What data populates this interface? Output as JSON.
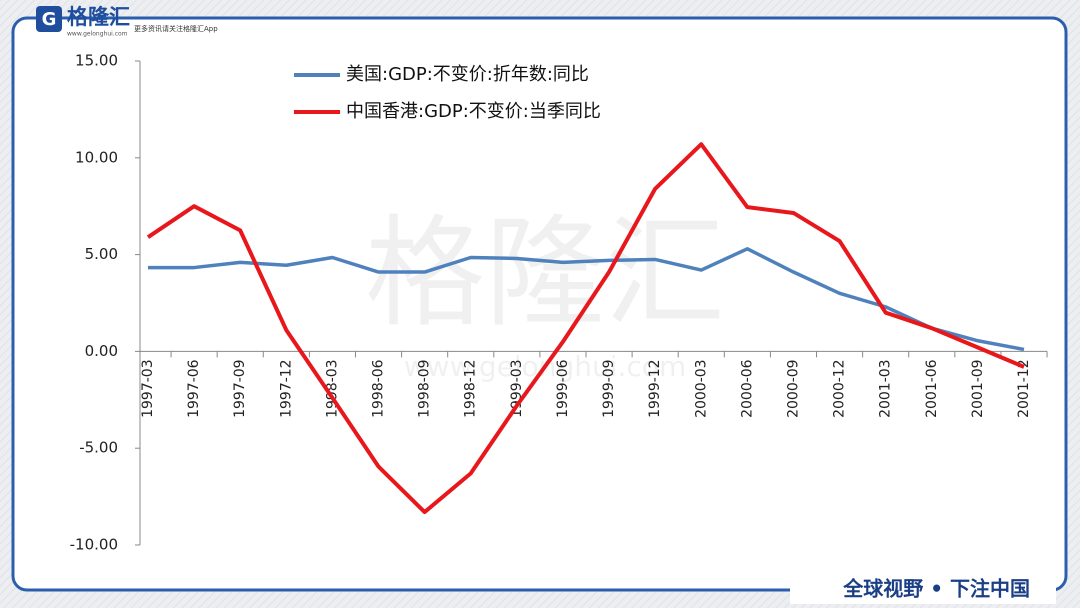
{
  "header": {
    "logo": "格隆汇",
    "slogan": "更多资讯请关注格隆汇App",
    "site": "www.gelonghui.com"
  },
  "watermark": {
    "logo": "格隆汇",
    "site": "www.gelonghui.com"
  },
  "footer": {
    "tagline": "全球视野 • 下注中国"
  },
  "chart_data": {
    "type": "line",
    "categories": [
      "1997-03",
      "1997-06",
      "1997-09",
      "1997-12",
      "1998-03",
      "1998-06",
      "1998-09",
      "1998-12",
      "1999-03",
      "1999-06",
      "1999-09",
      "1999-12",
      "2000-03",
      "2000-06",
      "2000-09",
      "2000-12",
      "2001-03",
      "2001-06",
      "2001-09",
      "2001-12"
    ],
    "series": [
      {
        "name": "美国:GDP:不变价:折年数:同比",
        "color": "#4f81bd",
        "values": [
          4.33,
          4.33,
          4.6,
          4.45,
          4.85,
          4.1,
          4.1,
          4.85,
          4.8,
          4.6,
          4.7,
          4.75,
          4.2,
          5.3,
          4.1,
          3.0,
          2.3,
          1.2,
          0.55,
          0.1
        ]
      },
      {
        "name": "中国香港:GDP:不变价:当季同比",
        "color": "#e8171b",
        "values": [
          5.9,
          7.5,
          6.25,
          1.1,
          -2.4,
          -5.95,
          -8.3,
          -6.3,
          -2.8,
          0.5,
          4.1,
          8.4,
          10.7,
          7.45,
          7.15,
          5.7,
          2.0,
          1.2,
          0.2,
          -0.8
        ]
      }
    ],
    "ylim": [
      -10,
      15
    ],
    "yticks": [
      {
        "value": -10,
        "label": "-10.00"
      },
      {
        "value": -5,
        "label": "-5.00"
      },
      {
        "value": 0,
        "label": "0.00"
      },
      {
        "value": 5,
        "label": "5.00"
      },
      {
        "value": 10,
        "label": "10.00"
      },
      {
        "value": 15,
        "label": "15.00"
      }
    ],
    "legend": "upper-left"
  }
}
